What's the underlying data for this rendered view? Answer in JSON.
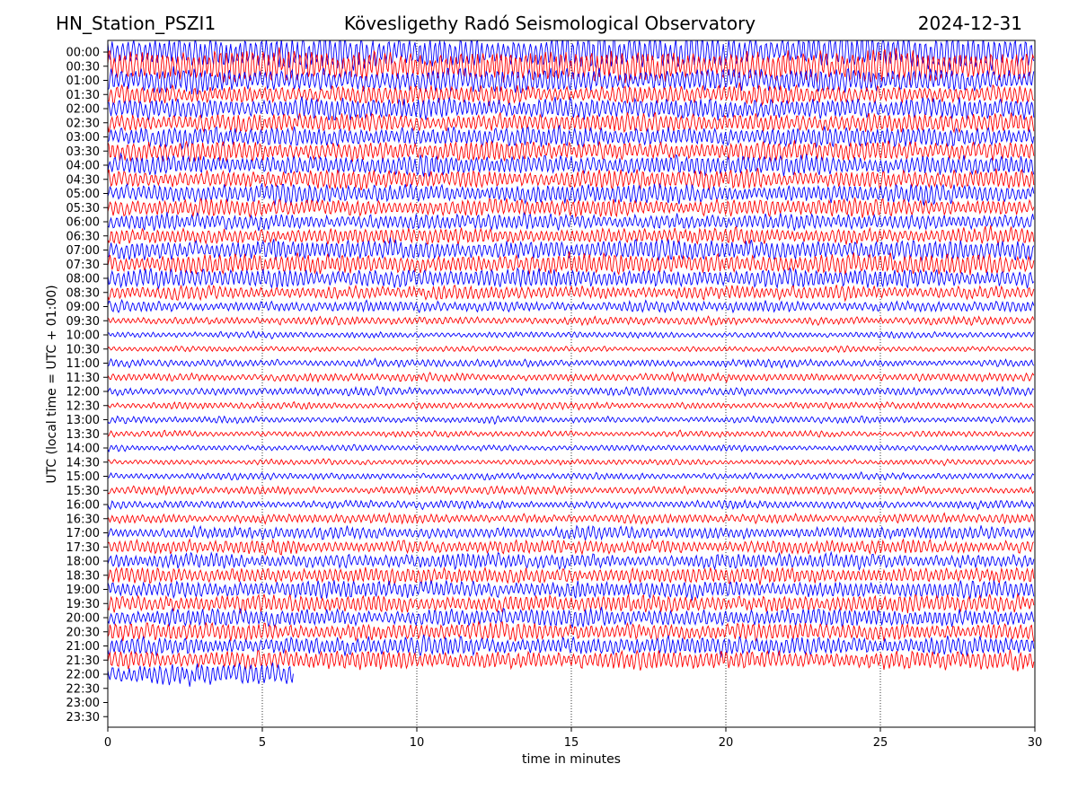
{
  "header": {
    "station": "HN_Station_PSZI1",
    "observatory": "Kövesligethy Radó Seismological Observatory",
    "date": "2024-12-31"
  },
  "chart_data": {
    "type": "line",
    "description_kind": "helicorder",
    "xlabel": "time in minutes",
    "ylabel": "UTC (local time = UTC + 01:00)",
    "xlim": [
      0,
      30
    ],
    "xticks": [
      0,
      5,
      10,
      15,
      20,
      25,
      30
    ],
    "xtick_labels": [
      "0",
      "5",
      "10",
      "15",
      "20",
      "25",
      "30"
    ],
    "ytick_labels": [
      "00:00",
      "00:30",
      "01:00",
      "01:30",
      "02:00",
      "02:30",
      "03:00",
      "03:30",
      "04:00",
      "04:30",
      "05:00",
      "05:30",
      "06:00",
      "06:30",
      "07:00",
      "07:30",
      "08:00",
      "08:30",
      "09:00",
      "09:30",
      "10:00",
      "10:30",
      "11:00",
      "11:30",
      "12:00",
      "12:30",
      "13:00",
      "13:30",
      "14:00",
      "14:30",
      "15:00",
      "15:30",
      "16:00",
      "16:30",
      "17:00",
      "17:30",
      "18:00",
      "18:30",
      "19:00",
      "19:30",
      "20:00",
      "20:30",
      "21:00",
      "21:30",
      "22:00",
      "22:30",
      "23:00",
      "23:30"
    ],
    "trace_colors": [
      "#0000ff",
      "#ff0000"
    ],
    "vertical_gridlines_minutes": [
      5,
      10,
      15,
      20,
      25
    ],
    "last_trace_label": "22:00",
    "last_trace_end_minute": 6,
    "relative_amplitude_per_trace": [
      2.4,
      2.4,
      1.8,
      1.4,
      1.6,
      1.4,
      1.5,
      1.5,
      1.5,
      1.4,
      1.4,
      1.3,
      1.2,
      1.2,
      1.5,
      1.5,
      1.4,
      1.0,
      0.8,
      0.6,
      0.45,
      0.4,
      0.55,
      0.6,
      0.6,
      0.5,
      0.5,
      0.45,
      0.45,
      0.4,
      0.5,
      0.6,
      0.6,
      0.7,
      0.9,
      1.0,
      1.1,
      1.2,
      1.3,
      1.3,
      1.3,
      1.3,
      1.4,
      1.4,
      1.6
    ]
  }
}
